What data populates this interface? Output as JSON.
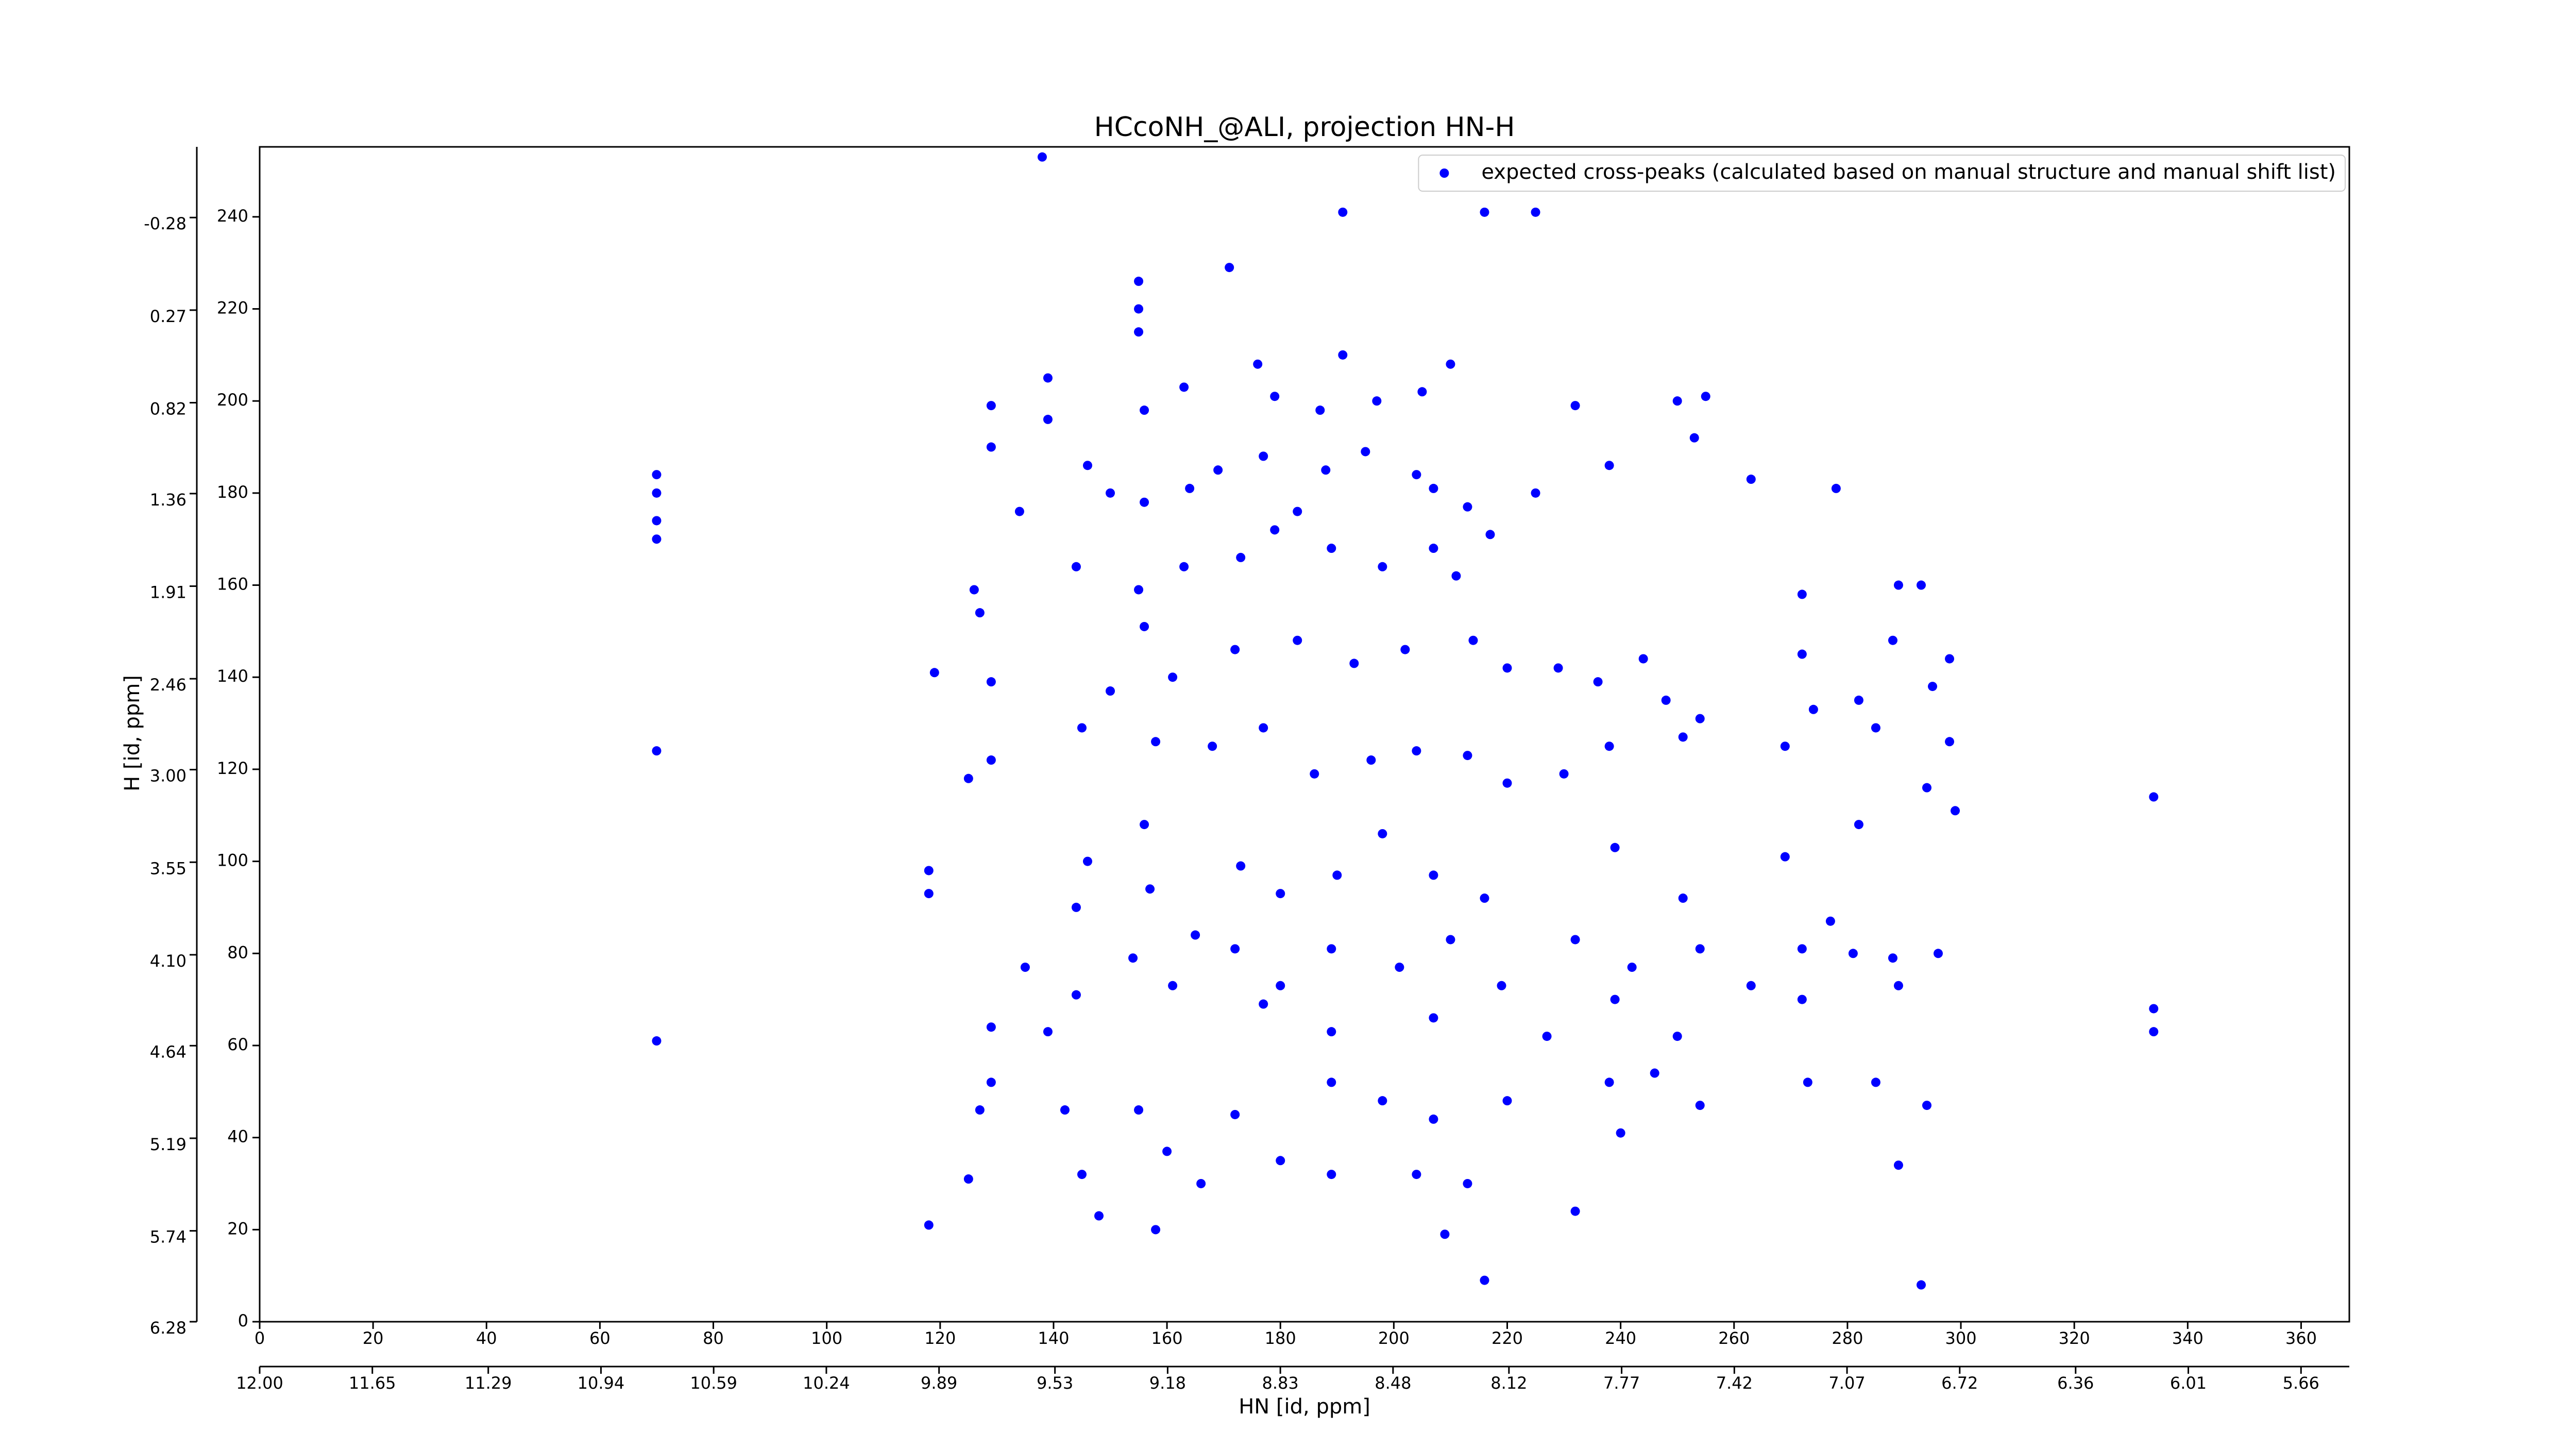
{
  "chart_data": {
    "type": "scatter",
    "title": "HCcoNH_@ALI, projection HN-H",
    "xlabel": "HN [id, ppm]",
    "ylabel": "H [id, ppm]",
    "legend": "upper right",
    "xlim": [
      0,
      368.5
    ],
    "xticks": [
      0,
      20,
      40,
      60,
      80,
      100,
      120,
      140,
      160,
      180,
      200,
      220,
      240,
      260,
      280,
      300,
      320,
      340,
      360
    ],
    "x2lim": [
      12.0,
      5.51
    ],
    "x2ticks": [
      {
        "value": 12.0,
        "label": "12.00"
      },
      11.65,
      11.29,
      10.94,
      10.59,
      10.24,
      9.89,
      9.53,
      9.18,
      8.83,
      8.48,
      8.12,
      7.77,
      7.42,
      7.07,
      6.72,
      6.36,
      6.01,
      5.66
    ],
    "ylim": [
      0,
      255.2
    ],
    "yticks": [
      0,
      20,
      40,
      60,
      80,
      100,
      120,
      140,
      160,
      180,
      200,
      220,
      240
    ],
    "y2lim": [
      6.28,
      -0.7
    ],
    "y2ticks": [
      6.28,
      5.74,
      5.19,
      4.64,
      {
        "value": 4.1,
        "label": "4.10"
      },
      3.55,
      {
        "value": 3.0,
        "label": "3.00"
      },
      2.46,
      1.91,
      1.36,
      0.82,
      0.27,
      -0.28
    ],
    "series": [
      {
        "name": "expected cross-peaks (calculated based on manual structure and manual shift list)",
        "color": "#0000ff",
        "x": [
          138,
          191,
          216,
          225,
          155,
          171,
          155,
          155,
          176,
          191,
          210,
          139,
          129,
          139,
          156,
          163,
          179,
          187,
          197,
          205,
          232,
          250,
          255,
          253,
          129,
          146,
          150,
          156,
          164,
          169,
          177,
          188,
          195,
          204,
          207,
          213,
          225,
          238,
          263,
          278,
          70,
          70,
          70,
          70,
          134,
          144,
          155,
          163,
          173,
          179,
          183,
          189,
          198,
          207,
          211,
          217,
          126,
          127,
          129,
          119,
          156,
          161,
          172,
          183,
          193,
          202,
          214,
          220,
          229,
          236,
          244,
          248,
          254,
          272,
          272,
          289,
          293,
          288,
          298,
          295,
          282,
          285,
          298,
          70,
          125,
          129,
          145,
          150,
          158,
          168,
          177,
          186,
          196,
          204,
          213,
          220,
          230,
          238,
          251,
          269,
          274,
          294,
          299,
          282,
          334,
          118,
          118,
          146,
          156,
          157,
          173,
          180,
          190,
          198,
          207,
          216,
          239,
          251,
          269,
          277,
          135,
          144,
          154,
          165,
          172,
          180,
          189,
          201,
          210,
          219,
          232,
          242,
          254,
          263,
          272,
          288,
          296,
          281,
          272,
          129,
          139,
          144,
          161,
          177,
          189,
          207,
          227,
          239,
          250,
          289,
          70,
          334,
          334,
          129,
          127,
          142,
          155,
          172,
          189,
          198,
          207,
          220,
          238,
          246,
          254,
          273,
          285,
          294,
          289,
          125,
          145,
          148,
          160,
          166,
          180,
          189,
          204,
          213,
          232,
          240,
          118,
          158,
          209,
          216,
          293
        ],
        "values": [
          253,
          241,
          241,
          241,
          226,
          229,
          220,
          215,
          208,
          210,
          208,
          205,
          199,
          196,
          198,
          203,
          201,
          198,
          200,
          202,
          199,
          200,
          201,
          192,
          190,
          186,
          180,
          178,
          181,
          185,
          188,
          185,
          189,
          184,
          181,
          177,
          180,
          186,
          183,
          181,
          184,
          180,
          174,
          170,
          176,
          164,
          159,
          164,
          166,
          172,
          176,
          168,
          164,
          168,
          162,
          171,
          159,
          154,
          139,
          141,
          151,
          140,
          146,
          148,
          143,
          146,
          148,
          142,
          142,
          139,
          144,
          135,
          131,
          158,
          145,
          160,
          160,
          148,
          144,
          138,
          135,
          129,
          126,
          124,
          118,
          122,
          129,
          137,
          126,
          125,
          129,
          119,
          122,
          124,
          123,
          117,
          119,
          125,
          127,
          125,
          133,
          116,
          111,
          108,
          114,
          98,
          93,
          100,
          108,
          94,
          99,
          93,
          97,
          106,
          97,
          92,
          103,
          92,
          101,
          87,
          77,
          90,
          79,
          84,
          81,
          73,
          81,
          77,
          83,
          73,
          83,
          77,
          81,
          73,
          81,
          79,
          80,
          80,
          70,
          64,
          63,
          71,
          73,
          69,
          63,
          66,
          62,
          70,
          62,
          73,
          61,
          68,
          63,
          52,
          46,
          46,
          46,
          45,
          52,
          48,
          44,
          48,
          52,
          54,
          47,
          52,
          52,
          47,
          34,
          31,
          32,
          23,
          37,
          30,
          35,
          32,
          32,
          30,
          24,
          41,
          21,
          20,
          19,
          9,
          8
        ]
      }
    ]
  }
}
